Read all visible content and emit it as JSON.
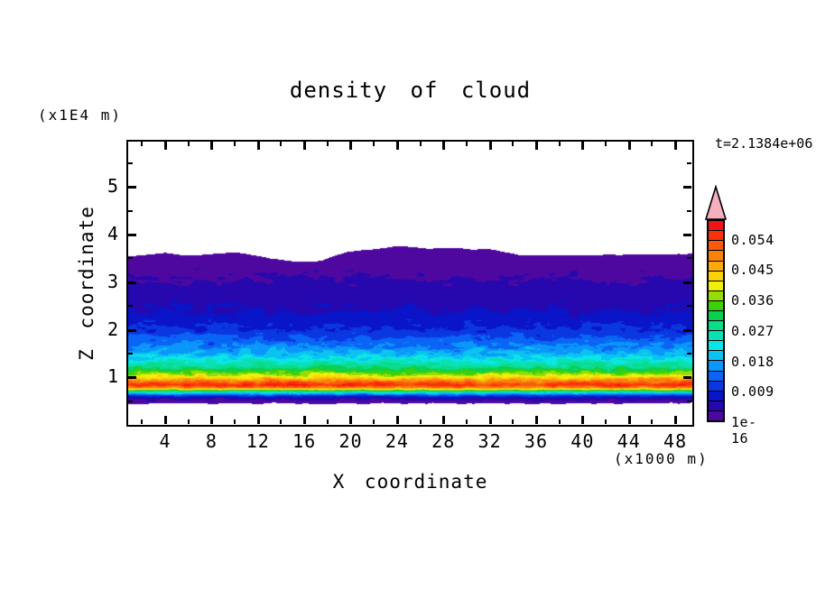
{
  "title": "density of cloud",
  "chart_data": {
    "type": "heatmap",
    "subtype": "filled-contour",
    "title": "density of cloud",
    "xlabel": "X coordinate",
    "ylabel": "Z coordinate",
    "x_unit": "(x1000 m)",
    "y_unit": "(x1E4 m)",
    "time_annotation": "t=2.1384e+06",
    "x_range": [
      0.6,
      49.5
    ],
    "z_range": [
      0.0,
      6.0
    ],
    "x_ticks": [
      4,
      8,
      12,
      16,
      20,
      24,
      28,
      32,
      36,
      40,
      44,
      48
    ],
    "x_minor_ticks": [
      2,
      6,
      10,
      14,
      18,
      22,
      26,
      30,
      34,
      38,
      42,
      46
    ],
    "y_ticks": [
      1,
      2,
      3,
      4,
      5
    ],
    "y_minor_ticks": [
      0.5,
      1.5,
      2.5,
      3.5,
      4.5,
      5.5
    ],
    "grid": false,
    "legend_position": "right-colorbar",
    "levels": {
      "start": "1e-16",
      "interval": 0.003,
      "n_bands": 20
    },
    "colorbar_labels": [
      {
        "label": "0.054",
        "boundary": 18
      },
      {
        "label": "0.045",
        "boundary": 15
      },
      {
        "label": "0.036",
        "boundary": 12
      },
      {
        "label": "0.027",
        "boundary": 9
      },
      {
        "label": "0.018",
        "boundary": 6
      },
      {
        "label": "0.009",
        "boundary": 3
      },
      {
        "label": "1e-16",
        "boundary": 0
      }
    ],
    "palette": [
      "#4E08A0",
      "#2608AE",
      "#0A14C8",
      "#0A37E1",
      "#0A64F5",
      "#0A96FA",
      "#0AC3F0",
      "#0AE6E6",
      "#0AE0B4",
      "#0ADC8C",
      "#0AD050",
      "#3CD00A",
      "#96DC0A",
      "#F0F00A",
      "#FAD20A",
      "#FAAA0A",
      "#FA820A",
      "#FA5A0A",
      "#FA320A",
      "#F01414"
    ],
    "over_color": "#F5AFBE",
    "frame_color": "#000000",
    "field_profile": {
      "comment": "estimated mean band-index (value/0.003) vs Z (x1E4 m), turbulence amplitude vs Z, cloud-top height vs plot-x-pixel, cloud-base ~0.46",
      "mean_band_vs_z": [
        [
          0.44,
          0.1
        ],
        [
          0.5,
          0.6
        ],
        [
          0.57,
          1.6
        ],
        [
          0.63,
          3.8
        ],
        [
          0.69,
          7.5
        ],
        [
          0.74,
          12.0
        ],
        [
          0.79,
          16.5
        ],
        [
          0.85,
          18.6
        ],
        [
          0.9,
          17.6
        ],
        [
          0.97,
          15.5
        ],
        [
          1.05,
          13.0
        ],
        [
          1.2,
          10.0
        ],
        [
          1.35,
          7.9
        ],
        [
          1.5,
          6.3
        ],
        [
          1.65,
          5.1
        ],
        [
          1.85,
          4.0
        ],
        [
          2.03,
          3.0
        ],
        [
          2.42,
          2.0
        ],
        [
          3.05,
          1.0
        ],
        [
          3.5,
          0.55
        ],
        [
          3.8,
          0.15
        ]
      ],
      "noise_amp_vs_z": [
        [
          0.44,
          0.5
        ],
        [
          0.5,
          0.7
        ],
        [
          0.6,
          1.1
        ],
        [
          0.72,
          1.6
        ],
        [
          0.85,
          1.6
        ],
        [
          1.0,
          2.0
        ],
        [
          1.2,
          1.9
        ],
        [
          1.45,
          1.7
        ],
        [
          1.7,
          1.4
        ],
        [
          2.0,
          1.0
        ],
        [
          2.4,
          0.65
        ],
        [
          3.0,
          0.4
        ],
        [
          3.8,
          0.25
        ]
      ],
      "cloud_top_vs_xpx": [
        [
          0,
          3.56
        ],
        [
          40,
          3.6
        ],
        [
          75,
          3.57
        ],
        [
          120,
          3.62
        ],
        [
          158,
          3.5
        ],
        [
          185,
          3.44
        ],
        [
          213,
          3.46
        ],
        [
          240,
          3.62
        ],
        [
          270,
          3.7
        ],
        [
          295,
          3.76
        ],
        [
          330,
          3.72
        ],
        [
          360,
          3.73
        ],
        [
          400,
          3.69
        ],
        [
          418,
          3.62
        ],
        [
          433,
          3.57
        ],
        [
          500,
          3.57
        ],
        [
          560,
          3.58
        ],
        [
          625,
          3.61
        ]
      ],
      "cloud_base_z": 0.46
    }
  }
}
